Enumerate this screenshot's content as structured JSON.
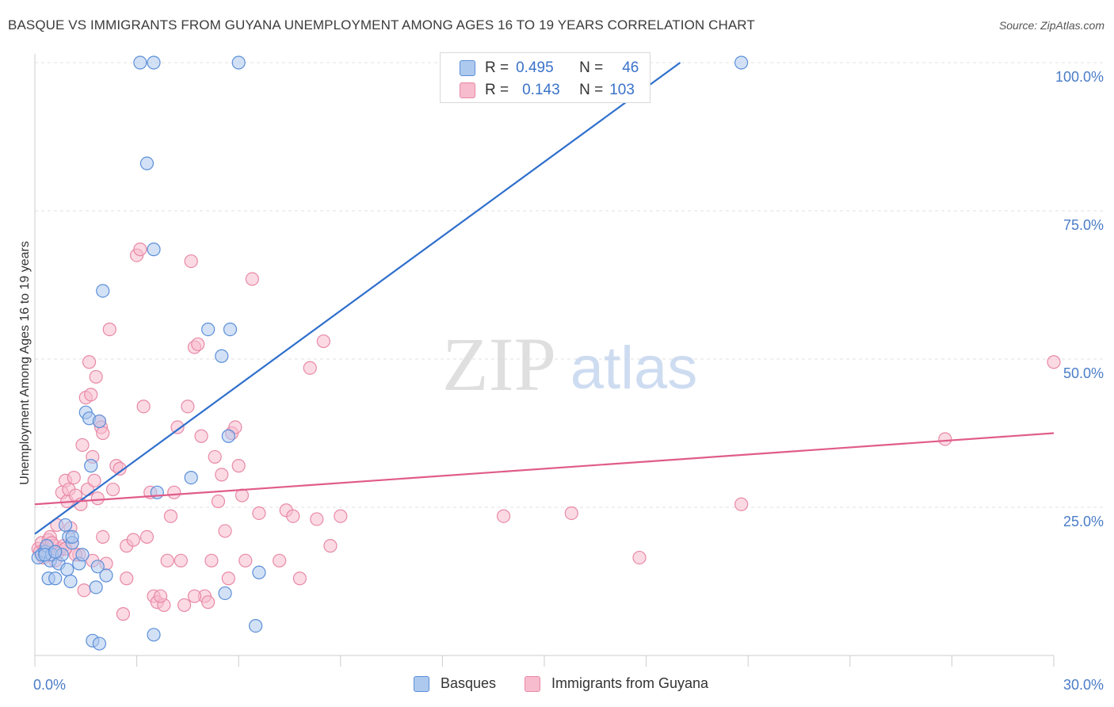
{
  "title": "BASQUE VS IMMIGRANTS FROM GUYANA UNEMPLOYMENT AMONG AGES 16 TO 19 YEARS CORRELATION CHART",
  "source": "Source: ZipAtlas.com",
  "watermark": {
    "zip": "ZIP",
    "atlas": "atlas"
  },
  "colors": {
    "blue_fill": "#aec9ee",
    "blue_stroke": "#5b8fd8",
    "blue_line": "#2f6fcc",
    "pink_fill": "#f7bccd",
    "pink_stroke": "#e889a6",
    "pink_line": "#e05c8a",
    "axis_label": "#4a7cc7",
    "grid": "#e2e2e2"
  },
  "stats": {
    "basques": {
      "r_label": "R =",
      "r_value": "0.495",
      "n_label": "N =",
      "n_value": "46"
    },
    "guyana": {
      "r_label": "R =",
      "r_value": "0.143",
      "n_label": "N =",
      "n_value": "103"
    }
  },
  "legend": {
    "basques": "Basques",
    "guyana": "Immigrants from Guyana"
  },
  "chart_data": {
    "type": "scatter",
    "title": "BASQUE VS IMMIGRANTS FROM GUYANA UNEMPLOYMENT AMONG AGES 16 TO 19 YEARS CORRELATION CHART",
    "xlabel": "",
    "ylabel": "Unemployment Among Ages 16 to 19 years",
    "xlim": [
      0,
      30
    ],
    "ylim": [
      0,
      100
    ],
    "x_tick_labels": [
      "0.0%",
      "30.0%"
    ],
    "y_ticks": [
      25,
      50,
      75,
      100
    ],
    "y_tick_labels": [
      "25.0%",
      "50.0%",
      "75.0%",
      "100.0%"
    ],
    "grid": true,
    "legend_position": "bottom-center",
    "series": [
      {
        "name": "Basques",
        "points": [
          [
            0.1,
            16.5
          ],
          [
            0.2,
            17.0
          ],
          [
            0.3,
            17.5
          ],
          [
            0.35,
            18.5
          ],
          [
            0.4,
            13.0
          ],
          [
            0.45,
            16.0
          ],
          [
            0.5,
            17.0
          ],
          [
            0.6,
            13.0
          ],
          [
            0.7,
            15.5
          ],
          [
            0.8,
            17.0
          ],
          [
            0.9,
            22.0
          ],
          [
            0.95,
            14.5
          ],
          [
            1.0,
            20.0
          ],
          [
            1.05,
            12.5
          ],
          [
            1.1,
            19.0
          ],
          [
            1.3,
            15.5
          ],
          [
            1.5,
            41.0
          ],
          [
            1.6,
            40.0
          ],
          [
            1.65,
            32.0
          ],
          [
            1.7,
            2.5
          ],
          [
            1.8,
            11.5
          ],
          [
            1.85,
            15.0
          ],
          [
            1.9,
            2.0
          ],
          [
            2.1,
            13.5
          ],
          [
            2.0,
            61.5
          ],
          [
            3.3,
            83.0
          ],
          [
            3.5,
            68.5
          ],
          [
            3.6,
            27.5
          ],
          [
            3.5,
            3.5
          ],
          [
            3.1,
            100.0
          ],
          [
            3.5,
            100.0
          ],
          [
            6.0,
            100.0
          ],
          [
            4.6,
            30.0
          ],
          [
            5.6,
            10.5
          ],
          [
            5.1,
            55.0
          ],
          [
            5.5,
            50.5
          ],
          [
            5.75,
            55.0
          ],
          [
            5.7,
            37.0
          ],
          [
            6.5,
            5.0
          ],
          [
            6.6,
            14.0
          ],
          [
            20.8,
            100.0
          ],
          [
            1.1,
            20.0
          ],
          [
            0.3,
            17.0
          ],
          [
            0.6,
            17.5
          ],
          [
            1.9,
            39.5
          ],
          [
            1.4,
            17.0
          ]
        ]
      },
      {
        "name": "Immigrants from Guyana",
        "points": [
          [
            0.1,
            18.0
          ],
          [
            0.15,
            17.5
          ],
          [
            0.2,
            19.0
          ],
          [
            0.25,
            16.5
          ],
          [
            0.3,
            18.0
          ],
          [
            0.35,
            17.5
          ],
          [
            0.4,
            19.5
          ],
          [
            0.45,
            20.0
          ],
          [
            0.5,
            17.0
          ],
          [
            0.55,
            18.5
          ],
          [
            0.6,
            16.0
          ],
          [
            0.65,
            22.0
          ],
          [
            0.7,
            17.5
          ],
          [
            0.75,
            18.0
          ],
          [
            0.8,
            27.5
          ],
          [
            0.85,
            18.5
          ],
          [
            0.9,
            29.5
          ],
          [
            0.95,
            26.0
          ],
          [
            1.0,
            28.0
          ],
          [
            1.05,
            21.5
          ],
          [
            1.1,
            19.0
          ],
          [
            1.15,
            30.0
          ],
          [
            1.2,
            27.0
          ],
          [
            1.3,
            17.0
          ],
          [
            1.35,
            25.5
          ],
          [
            1.4,
            35.5
          ],
          [
            1.45,
            11.0
          ],
          [
            1.5,
            43.5
          ],
          [
            1.55,
            28.0
          ],
          [
            1.6,
            49.5
          ],
          [
            1.65,
            44.0
          ],
          [
            1.7,
            33.5
          ],
          [
            1.75,
            29.5
          ],
          [
            1.8,
            47.0
          ],
          [
            1.85,
            26.5
          ],
          [
            1.9,
            39.5
          ],
          [
            1.95,
            38.5
          ],
          [
            2.0,
            37.5
          ],
          [
            2.1,
            15.5
          ],
          [
            2.2,
            55.0
          ],
          [
            2.3,
            28.0
          ],
          [
            2.4,
            32.0
          ],
          [
            2.5,
            31.5
          ],
          [
            2.6,
            7.0
          ],
          [
            2.7,
            18.5
          ],
          [
            2.9,
            19.5
          ],
          [
            3.0,
            67.5
          ],
          [
            3.1,
            68.5
          ],
          [
            3.2,
            42.0
          ],
          [
            3.3,
            20.0
          ],
          [
            3.4,
            27.5
          ],
          [
            3.5,
            10.0
          ],
          [
            3.6,
            9.0
          ],
          [
            3.8,
            8.5
          ],
          [
            3.9,
            16.0
          ],
          [
            4.0,
            23.5
          ],
          [
            4.1,
            27.5
          ],
          [
            4.2,
            38.5
          ],
          [
            4.3,
            16.0
          ],
          [
            4.4,
            8.5
          ],
          [
            4.5,
            42.0
          ],
          [
            4.6,
            66.5
          ],
          [
            4.7,
            52.0
          ],
          [
            4.8,
            52.5
          ],
          [
            4.9,
            37.0
          ],
          [
            5.0,
            10.0
          ],
          [
            5.1,
            9.0
          ],
          [
            5.2,
            16.0
          ],
          [
            5.3,
            33.5
          ],
          [
            5.4,
            26.0
          ],
          [
            5.5,
            30.5
          ],
          [
            5.6,
            21.0
          ],
          [
            5.7,
            13.0
          ],
          [
            5.8,
            37.5
          ],
          [
            5.9,
            38.5
          ],
          [
            6.0,
            32.0
          ],
          [
            6.1,
            27.0
          ],
          [
            6.2,
            16.0
          ],
          [
            6.4,
            63.5
          ],
          [
            6.6,
            24.0
          ],
          [
            7.2,
            16.0
          ],
          [
            7.4,
            24.5
          ],
          [
            7.6,
            23.5
          ],
          [
            7.8,
            13.0
          ],
          [
            8.1,
            48.5
          ],
          [
            8.3,
            23.0
          ],
          [
            8.5,
            53.0
          ],
          [
            8.7,
            18.5
          ],
          [
            9.0,
            23.5
          ],
          [
            13.8,
            23.5
          ],
          [
            15.8,
            24.0
          ],
          [
            17.8,
            16.5
          ],
          [
            20.8,
            25.5
          ],
          [
            26.8,
            36.5
          ],
          [
            30.0,
            49.5
          ],
          [
            1.2,
            17.0
          ],
          [
            0.5,
            19.0
          ],
          [
            2.7,
            13.0
          ],
          [
            3.7,
            10.0
          ],
          [
            4.7,
            10.0
          ],
          [
            1.7,
            16.0
          ],
          [
            0.9,
            18.0
          ],
          [
            2.0,
            20.0
          ]
        ]
      }
    ],
    "trendlines": [
      {
        "name": "Basques",
        "x0": 0,
        "y0": 20.5,
        "x1": 19.0,
        "y1": 100.0
      },
      {
        "name": "Immigrants from Guyana",
        "x0": 0,
        "y0": 25.5,
        "x1": 30.0,
        "y1": 37.5
      }
    ]
  }
}
